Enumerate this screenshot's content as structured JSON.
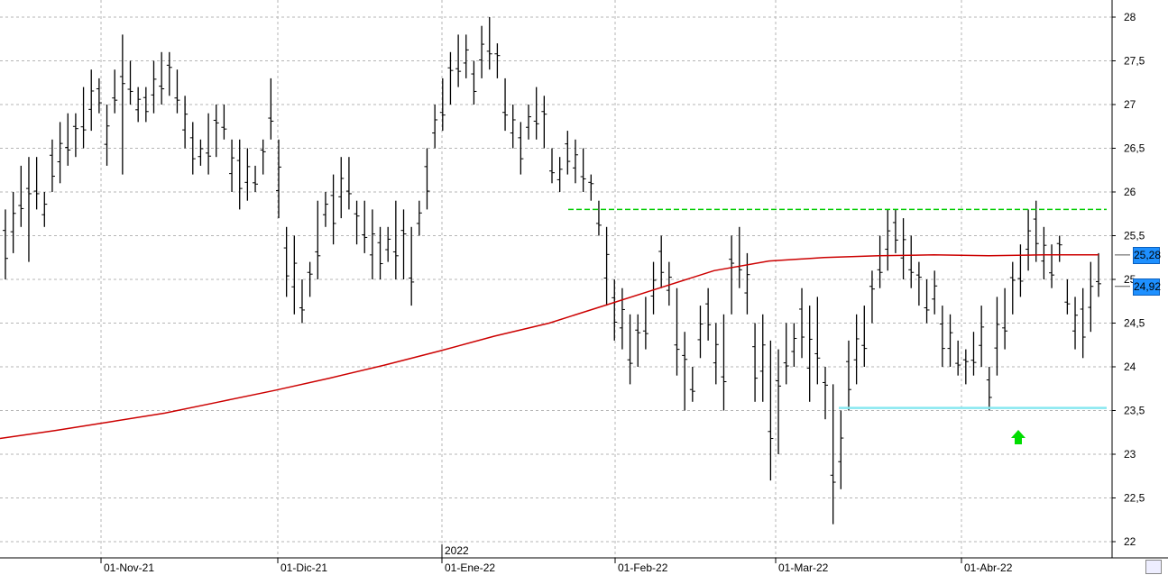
{
  "chart_data": {
    "type": "bar",
    "title": "",
    "xlabel": "",
    "ylabel": "",
    "ylim": [
      21.85,
      28.1
    ],
    "y_ticks": [
      "22",
      "22,5",
      "23",
      "23,5",
      "24",
      "24,5",
      "25",
      "25,5",
      "26",
      "26,5",
      "27",
      "27,5",
      "28"
    ],
    "y_tick_values": [
      22,
      22.5,
      23,
      23.5,
      24,
      24.5,
      25,
      25.5,
      26,
      26.5,
      27,
      27.5,
      28
    ],
    "x_ticks": [
      "01-Nov-21",
      "01-Dic-21",
      "01-Ene-22",
      "01-Feb-22",
      "01-Mar-22",
      "01-Abr-22"
    ],
    "x_tick_dates": [
      "2021-11-01",
      "2021-12-01",
      "2022-01-01",
      "2022-02-01",
      "2022-03-01",
      "2022-04-01"
    ],
    "year_marker": "2022",
    "grid": true,
    "bars_note": "daily OHLC bars (high, low)",
    "bars": [
      [
        25.8,
        25.0
      ],
      [
        26.0,
        25.3
      ],
      [
        26.3,
        25.6
      ],
      [
        26.4,
        25.2
      ],
      [
        26.4,
        25.8
      ],
      [
        26.0,
        25.6
      ],
      [
        26.6,
        26.0
      ],
      [
        26.8,
        26.1
      ],
      [
        26.9,
        26.3
      ],
      [
        26.9,
        26.4
      ],
      [
        27.2,
        26.5
      ],
      [
        27.4,
        26.7
      ],
      [
        27.3,
        26.9
      ],
      [
        27.0,
        26.3
      ],
      [
        27.4,
        26.9
      ],
      [
        27.8,
        26.2
      ],
      [
        27.5,
        27.0
      ],
      [
        27.2,
        26.8
      ],
      [
        27.2,
        26.8
      ],
      [
        27.5,
        26.9
      ],
      [
        27.6,
        27.0
      ],
      [
        27.6,
        27.1
      ],
      [
        27.4,
        26.9
      ],
      [
        27.1,
        26.5
      ],
      [
        26.8,
        26.2
      ],
      [
        26.6,
        26.3
      ],
      [
        26.9,
        26.2
      ],
      [
        27.0,
        26.4
      ],
      [
        27.0,
        26.6
      ],
      [
        26.6,
        26.0
      ],
      [
        26.6,
        25.8
      ],
      [
        26.5,
        25.9
      ],
      [
        26.3,
        26.0
      ],
      [
        26.6,
        26.2
      ],
      [
        27.3,
        26.6
      ],
      [
        26.6,
        25.7
      ],
      [
        25.6,
        24.8
      ],
      [
        25.5,
        24.6
      ],
      [
        25.0,
        24.5
      ],
      [
        25.2,
        24.8
      ],
      [
        25.9,
        25.0
      ],
      [
        26.0,
        25.6
      ],
      [
        26.2,
        25.4
      ],
      [
        26.4,
        25.7
      ],
      [
        26.4,
        25.8
      ],
      [
        25.9,
        25.4
      ],
      [
        25.9,
        25.3
      ],
      [
        25.8,
        25.0
      ],
      [
        25.6,
        25.0
      ],
      [
        25.6,
        25.2
      ],
      [
        25.9,
        25.0
      ],
      [
        25.8,
        25.0
      ],
      [
        25.6,
        24.7
      ],
      [
        25.9,
        25.5
      ],
      [
        26.5,
        25.8
      ],
      [
        27.0,
        26.5
      ],
      [
        27.3,
        26.7
      ],
      [
        27.6,
        27.0
      ],
      [
        27.8,
        27.2
      ],
      [
        27.8,
        27.3
      ],
      [
        27.5,
        27.0
      ],
      [
        27.9,
        27.3
      ],
      [
        28.0,
        27.4
      ],
      [
        27.7,
        27.3
      ],
      [
        27.3,
        26.7
      ],
      [
        27.0,
        26.5
      ],
      [
        26.8,
        26.2
      ],
      [
        27.0,
        26.6
      ],
      [
        27.2,
        26.6
      ],
      [
        27.1,
        26.5
      ],
      [
        26.5,
        26.1
      ],
      [
        26.4,
        26.0
      ],
      [
        26.7,
        26.2
      ],
      [
        26.6,
        26.1
      ],
      [
        26.5,
        26.0
      ],
      [
        26.2,
        25.9
      ],
      [
        25.9,
        25.5
      ],
      [
        25.6,
        24.7
      ],
      [
        25.0,
        24.3
      ],
      [
        24.9,
        24.2
      ],
      [
        24.6,
        23.8
      ],
      [
        24.6,
        24.0
      ],
      [
        24.8,
        24.2
      ],
      [
        25.2,
        24.6
      ],
      [
        25.5,
        24.9
      ],
      [
        25.2,
        24.7
      ],
      [
        24.9,
        23.9
      ],
      [
        24.4,
        23.5
      ],
      [
        24.0,
        23.6
      ],
      [
        24.7,
        24.1
      ],
      [
        24.9,
        24.3
      ],
      [
        24.5,
        23.8
      ],
      [
        24.6,
        23.5
      ],
      [
        25.5,
        24.6
      ],
      [
        25.6,
        24.9
      ],
      [
        25.3,
        24.6
      ],
      [
        24.5,
        23.6
      ],
      [
        24.6,
        23.6
      ],
      [
        24.3,
        22.7
      ],
      [
        24.2,
        23.0
      ],
      [
        24.5,
        23.8
      ],
      [
        24.5,
        24.0
      ],
      [
        24.9,
        24.1
      ],
      [
        24.7,
        23.6
      ],
      [
        24.8,
        23.8
      ],
      [
        24.0,
        23.4
      ],
      [
        23.8,
        22.2
      ],
      [
        23.5,
        22.6
      ],
      [
        24.3,
        23.5
      ],
      [
        24.6,
        23.8
      ],
      [
        24.7,
        24.0
      ],
      [
        25.1,
        24.5
      ],
      [
        25.5,
        24.9
      ],
      [
        25.8,
        25.1
      ],
      [
        25.8,
        25.3
      ],
      [
        25.7,
        25.0
      ],
      [
        25.5,
        24.9
      ],
      [
        25.2,
        24.7
      ],
      [
        25.0,
        24.5
      ],
      [
        25.1,
        24.6
      ],
      [
        24.7,
        24.0
      ],
      [
        24.6,
        24.0
      ],
      [
        24.3,
        23.9
      ],
      [
        24.2,
        23.8
      ],
      [
        24.4,
        23.9
      ],
      [
        24.7,
        24.0
      ],
      [
        24.0,
        23.5
      ],
      [
        24.8,
        23.9
      ],
      [
        24.9,
        24.2
      ],
      [
        25.2,
        24.6
      ],
      [
        25.4,
        24.8
      ],
      [
        25.8,
        25.1
      ],
      [
        25.9,
        25.2
      ],
      [
        25.6,
        25.0
      ],
      [
        25.4,
        24.9
      ],
      [
        25.5,
        25.2
      ],
      [
        25.0,
        24.6
      ],
      [
        24.8,
        24.2
      ],
      [
        24.9,
        24.1
      ],
      [
        25.2,
        24.4
      ],
      [
        25.3,
        24.8
      ]
    ],
    "series": [
      {
        "name": "",
        "color": "#cc0000",
        "values": [
          23.18,
          23.27,
          23.37,
          23.47,
          23.6,
          23.73,
          23.87,
          24.02,
          24.18,
          24.35,
          24.5,
          24.7,
          24.9,
          25.1,
          25.21,
          25.25,
          25.27,
          25.28,
          25.27,
          25.28,
          25.28
        ]
      }
    ],
    "resistance_level": 25.8,
    "resistance_color": "#00cc00",
    "support_level": 23.53,
    "support_color": "#88e8f0",
    "arrow_color": "#00dd00",
    "price_labels": [
      {
        "text": "25,28",
        "value": 25.28
      },
      {
        "text": "24,92",
        "value": 24.92
      }
    ]
  }
}
